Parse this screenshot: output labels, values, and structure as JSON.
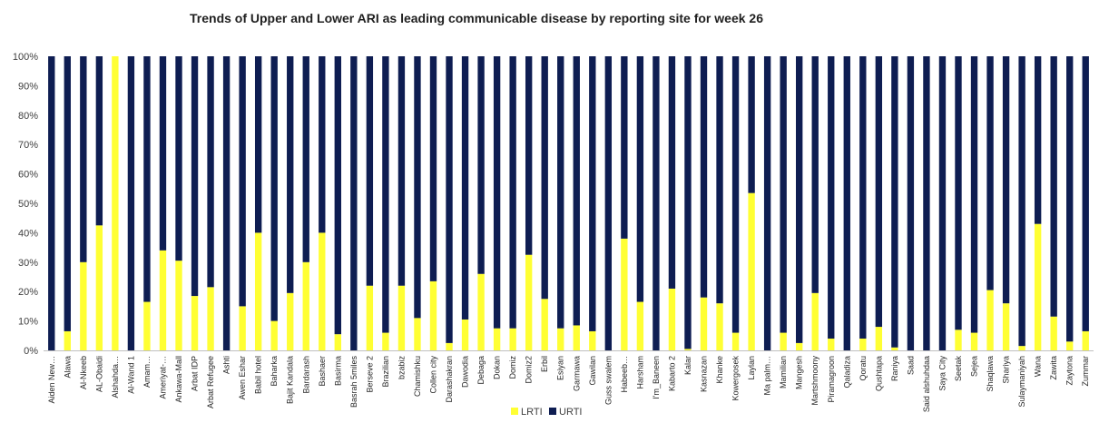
{
  "chart_data": {
    "type": "bar",
    "stacked": true,
    "title": "Trends of Upper and Lower ARI as leading communicable disease by reporting site for week 26",
    "xlabel": "",
    "ylabel": "",
    "ylim": [
      0,
      100
    ],
    "y_ticks": [
      "0%",
      "10%",
      "20%",
      "30%",
      "40%",
      "50%",
      "60%",
      "70%",
      "80%",
      "90%",
      "100%"
    ],
    "grid": false,
    "legend_position": "bottom",
    "categories": [
      "Aiden New…",
      "Alawa",
      "Al-Nkeeb",
      "AL-Obaidi",
      "Alshahda…",
      "Al-Wand 1",
      "Amam…",
      "Ameriyat-…",
      "Ankawa-Mall",
      "Arbat IDP",
      "Arbat Refugee",
      "Ashti",
      "Awen Eshar",
      "Babil hotel",
      "Baharka",
      "Bajit Kandala",
      "Bardarash",
      "Bashaer",
      "Basirma",
      "Basrah 5miles",
      "Berseve 2",
      "Brazilian",
      "bzabiz",
      "Chamishku",
      "Collen city",
      "Darashakran",
      "Dawodia",
      "Debaga",
      "Dokan",
      "Domiz",
      "Domiz2",
      "Erbil",
      "Esiyan",
      "Garmawa",
      "Gawilan",
      "Guss swalem",
      "Habeeb…",
      "Harsham",
      "I'm_Baneen",
      "Kabarto 2",
      "Kalar",
      "Kasnazan",
      "Khanke",
      "Kowergosek",
      "Laylan",
      "Ma palm…",
      "Mamilian",
      "Mangesh",
      "Martshmoony",
      "Piramagroon",
      "Qaladiza",
      "Qoratu",
      "Qushtapa",
      "Raniya",
      "Saad",
      "Said alshuhdaa",
      "Saya City",
      "Seetak",
      "Sejea",
      "Shaqlawa",
      "Shariya",
      "Sulaymaniyah",
      "Wana",
      "Zawita",
      "Zaytona",
      "Zummar"
    ],
    "series": [
      {
        "name": "LRTI",
        "color": "#ffff33",
        "values": [
          0,
          6.5,
          30,
          42.5,
          100,
          0,
          16.5,
          34,
          30.5,
          18.5,
          21.5,
          0,
          15,
          40,
          10,
          19.5,
          30,
          40,
          5.5,
          0,
          22,
          6,
          22,
          11,
          23.5,
          2.5,
          10.5,
          26,
          7.5,
          7.5,
          32.5,
          17.5,
          7.5,
          8.5,
          6.5,
          0,
          38,
          16.5,
          0,
          21,
          0.5,
          18,
          16,
          6,
          53.5,
          0,
          6,
          2.5,
          19.5,
          4,
          0,
          4,
          8,
          1,
          0,
          0,
          0,
          7,
          6,
          20.5,
          16,
          1.5,
          43,
          11.5,
          3,
          6.5
        ]
      },
      {
        "name": "URTI",
        "color": "#0e1d52",
        "values": [
          100,
          93.5,
          70,
          57.5,
          0,
          100,
          83.5,
          66,
          69.5,
          81.5,
          78.5,
          100,
          85,
          60,
          90,
          80.5,
          70,
          60,
          94.5,
          100,
          78,
          94,
          78,
          89,
          76.5,
          97.5,
          89.5,
          74,
          92.5,
          92.5,
          67.5,
          82.5,
          92.5,
          91.5,
          93.5,
          100,
          62,
          83.5,
          100,
          79,
          99.5,
          82,
          84,
          94,
          46.5,
          100,
          94,
          97.5,
          80.5,
          96,
          100,
          96,
          92,
          99,
          100,
          100,
          100,
          93,
          94,
          79.5,
          84,
          98.5,
          57,
          88.5,
          97,
          93.5
        ]
      }
    ]
  }
}
